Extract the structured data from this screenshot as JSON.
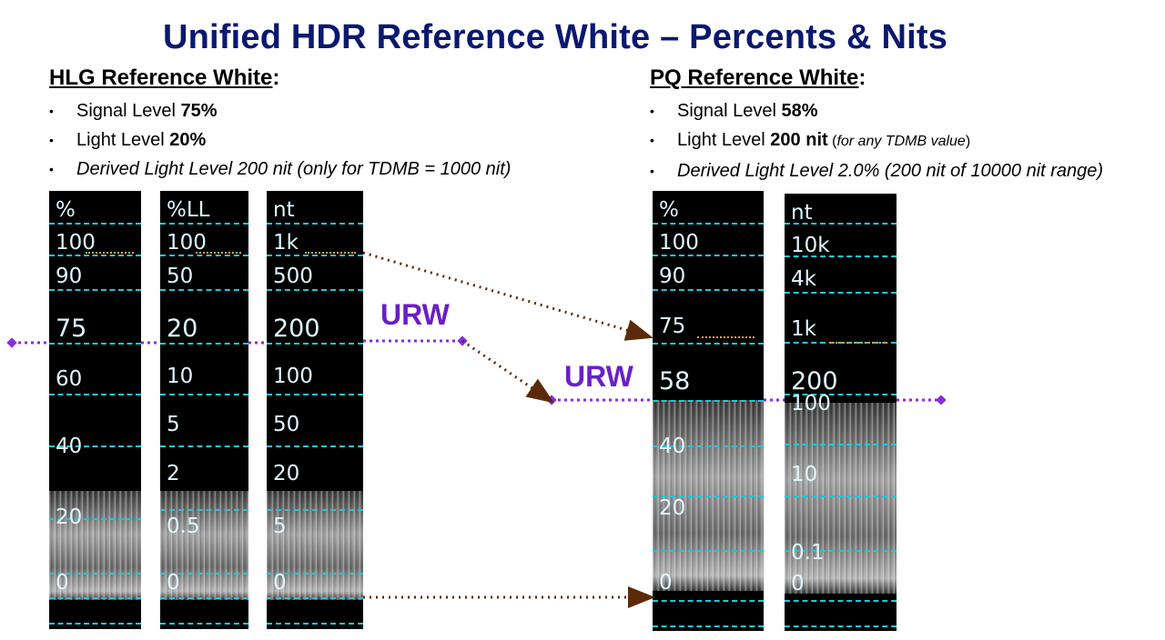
{
  "title": "Unified HDR Reference White – Percents & Nits",
  "hlg": {
    "heading": "HLG Reference White",
    "bullets": [
      {
        "pre": "Signal Level ",
        "bold": "75%",
        "post": ""
      },
      {
        "pre": "Light Level ",
        "bold": "20%",
        "post": ""
      },
      {
        "italic": "Derived Light Level 200 nit (only for TDMB = 1000 nit)"
      }
    ]
  },
  "pq": {
    "heading": "PQ Reference White",
    "bullets": [
      {
        "pre": "Signal Level ",
        "bold": "58%",
        "post": ""
      },
      {
        "pre": "Light Level ",
        "bold": "200 nit",
        "paren_open": " (",
        "paren_italic": "for any TDMB value",
        "paren_close": ")"
      },
      {
        "italic": "Derived Light Level 2.0% (200 nit of 10000 nit range)"
      }
    ]
  },
  "urw_label": "URW",
  "bullet_char": "•",
  "heading_suffix": ":",
  "colors": {
    "title": "#0b1870",
    "urw": "#6a1fc7",
    "grid": "#1ec8d4",
    "arrow": "#5a2a0a"
  },
  "panels": [
    {
      "id": "hlg-percent",
      "labels": [
        "%",
        "100",
        "90",
        "75",
        "60",
        "40",
        "20",
        "0"
      ],
      "highlight": 3
    },
    {
      "id": "hlg-percent-ll",
      "labels": [
        "%LL",
        "100",
        "50",
        "20",
        "10",
        "5",
        "2",
        "0.5",
        "0"
      ],
      "highlight": 3
    },
    {
      "id": "hlg-nits",
      "labels": [
        "nt",
        "1k",
        "500",
        "200",
        "100",
        "50",
        "20",
        "5",
        "0"
      ],
      "highlight": 3
    },
    {
      "id": "pq-percent",
      "labels": [
        "%",
        "100",
        "90",
        "75",
        "58",
        "40",
        "20",
        "0"
      ],
      "highlight": 4
    },
    {
      "id": "pq-nits",
      "labels": [
        "nt",
        "10k",
        "4k",
        "1k",
        "200",
        "100",
        "10",
        "0.1",
        "0"
      ],
      "highlight": 4
    }
  ]
}
